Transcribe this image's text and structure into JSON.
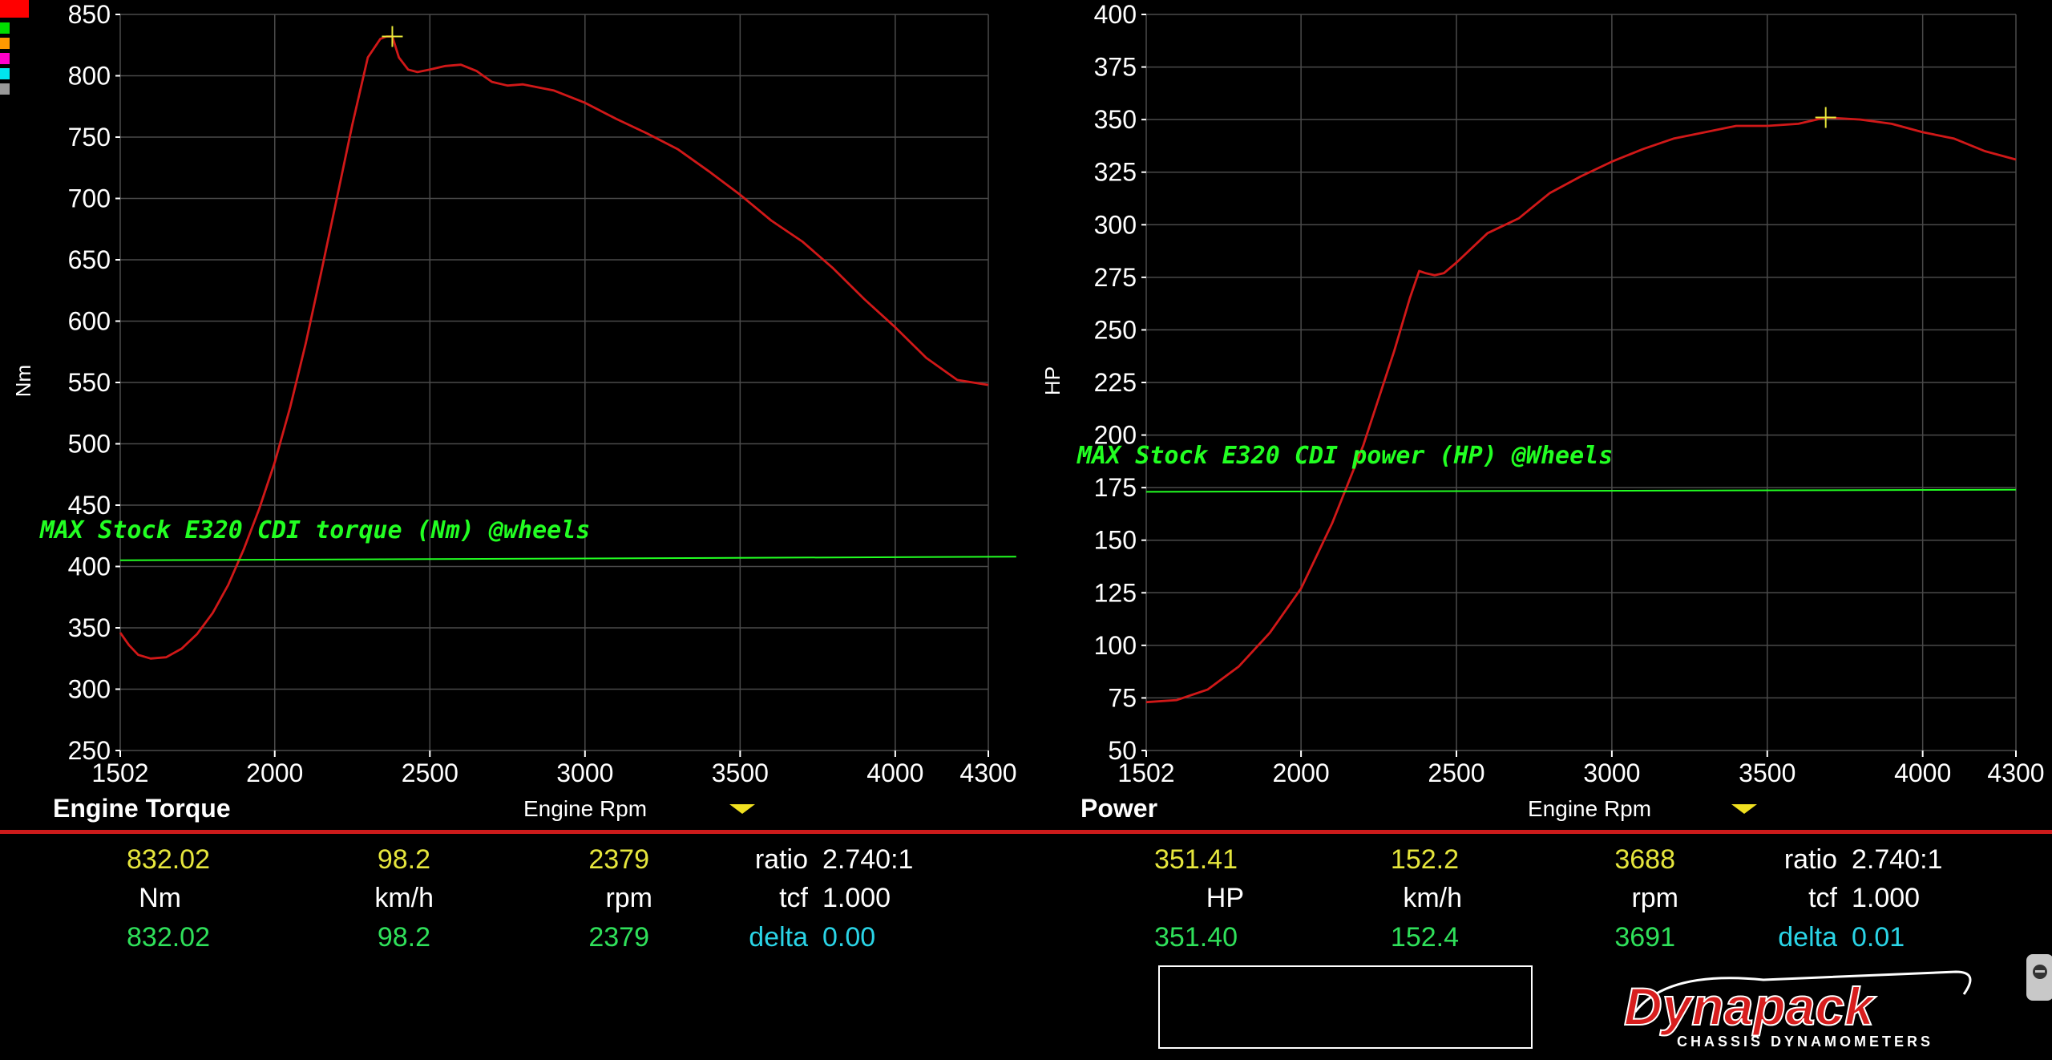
{
  "palette": {
    "swatches": [
      "#ff0000",
      "#00dd00",
      "#ff9900",
      "#ff00cc",
      "#00e5ee",
      "#999999"
    ]
  },
  "chart_data": [
    {
      "type": "line",
      "title": "Engine Torque",
      "xlabel": "Engine Rpm",
      "ylabel": "Nm",
      "xlim": [
        1502,
        4300
      ],
      "ylim": [
        250,
        850
      ],
      "x_ticks": [
        "1502",
        "2000",
        "2500",
        "3000",
        "3500",
        "4000",
        "4300"
      ],
      "x_tick_values": [
        1502,
        2000,
        2500,
        3000,
        3500,
        4000,
        4300
      ],
      "y_ticks": [
        "250",
        "300",
        "350",
        "400",
        "450",
        "500",
        "550",
        "600",
        "650",
        "700",
        "750",
        "800",
        "850"
      ],
      "y_tick_values": [
        250,
        300,
        350,
        400,
        450,
        500,
        550,
        600,
        650,
        700,
        750,
        800,
        850
      ],
      "grid": true,
      "series": [
        {
          "color": "#d01818",
          "x": [
            1502,
            1530,
            1560,
            1600,
            1650,
            1700,
            1750,
            1800,
            1850,
            1900,
            1950,
            2000,
            2050,
            2100,
            2150,
            2200,
            2250,
            2300,
            2340,
            2360,
            2379,
            2400,
            2430,
            2460,
            2500,
            2550,
            2600,
            2650,
            2700,
            2750,
            2800,
            2900,
            3000,
            3100,
            3200,
            3300,
            3400,
            3500,
            3600,
            3700,
            3800,
            3900,
            4000,
            4100,
            4200,
            4300
          ],
          "y": [
            346,
            336,
            328,
            325,
            326,
            333,
            345,
            362,
            385,
            414,
            447,
            485,
            530,
            582,
            640,
            700,
            760,
            815,
            830,
            832,
            832,
            815,
            805,
            803,
            805,
            808,
            809,
            804,
            795,
            792,
            793,
            788,
            778,
            765,
            753,
            740,
            722,
            703,
            682,
            665,
            643,
            618,
            595,
            570,
            552,
            548
          ]
        },
        {
          "name": "MAX Stock E320 CDI torque (Nm) @wheels",
          "color": "#22ff22",
          "x": [
            1502,
            4390
          ],
          "y": [
            405,
            408
          ]
        }
      ],
      "marker": {
        "x": 2379,
        "y": 832
      },
      "annotations": [
        {
          "text": "MAX Stock E320 CDI torque (Nm) @wheels",
          "x": 1502,
          "y": 420
        }
      ]
    },
    {
      "type": "line",
      "title": "Power",
      "xlabel": "Engine Rpm",
      "ylabel": "HP",
      "xlim": [
        1502,
        4300
      ],
      "ylim": [
        50,
        400
      ],
      "x_ticks": [
        "1502",
        "2000",
        "2500",
        "3000",
        "3500",
        "4000",
        "4300"
      ],
      "x_tick_values": [
        1502,
        2000,
        2500,
        3000,
        3500,
        4000,
        4300
      ],
      "y_ticks": [
        "50",
        "75",
        "100",
        "125",
        "150",
        "175",
        "200",
        "225",
        "250",
        "275",
        "300",
        "325",
        "350",
        "375",
        "400"
      ],
      "y_tick_values": [
        50,
        75,
        100,
        125,
        150,
        175,
        200,
        225,
        250,
        275,
        300,
        325,
        350,
        375,
        400
      ],
      "grid": true,
      "series": [
        {
          "color": "#d01818",
          "x": [
            1502,
            1600,
            1700,
            1800,
            1900,
            2000,
            2100,
            2200,
            2300,
            2350,
            2380,
            2400,
            2430,
            2460,
            2500,
            2600,
            2700,
            2800,
            2900,
            3000,
            3100,
            3200,
            3300,
            3400,
            3500,
            3600,
            3688,
            3800,
            3900,
            4000,
            4100,
            4200,
            4300
          ],
          "y": [
            73,
            74,
            79,
            90,
            106,
            127,
            158,
            195,
            240,
            265,
            278,
            277,
            276,
            277,
            282,
            296,
            303,
            315,
            323,
            330,
            336,
            341,
            344,
            347,
            347,
            348,
            351,
            350,
            348,
            344,
            341,
            335,
            331
          ]
        },
        {
          "name": "MAX Stock E320 CDI power (HP) @Wheels",
          "color": "#22ff22",
          "x": [
            1502,
            4300
          ],
          "y": [
            173,
            174
          ]
        }
      ],
      "marker": {
        "x": 3688,
        "y": 351
      },
      "annotations": [
        {
          "text": "MAX Stock E320 CDI power (HP) @Wheels",
          "x": 1502,
          "y": 185
        }
      ]
    }
  ],
  "readouts": [
    {
      "values": [
        "832.02",
        "98.2",
        "2379"
      ],
      "units": [
        "Nm",
        "km/h",
        "rpm"
      ],
      "deltas": [
        "832.02",
        "98.2",
        "2379"
      ],
      "ratio_label": "ratio",
      "ratio_value": "2.740:1",
      "tcf_label": "tcf",
      "tcf_value": "1.000",
      "delta_label": "delta",
      "delta_value": "0.00"
    },
    {
      "values": [
        "351.41",
        "152.2",
        "3688"
      ],
      "units": [
        "HP",
        "km/h",
        "rpm"
      ],
      "deltas": [
        "351.40",
        "152.4",
        "3691"
      ],
      "ratio_label": "ratio",
      "ratio_value": "2.740:1",
      "tcf_label": "tcf",
      "tcf_value": "1.000",
      "delta_label": "delta",
      "delta_value": "0.01"
    }
  ],
  "logo": {
    "name": "Dynapack",
    "tagline": "CHASSIS DYNAMOMETERS"
  }
}
